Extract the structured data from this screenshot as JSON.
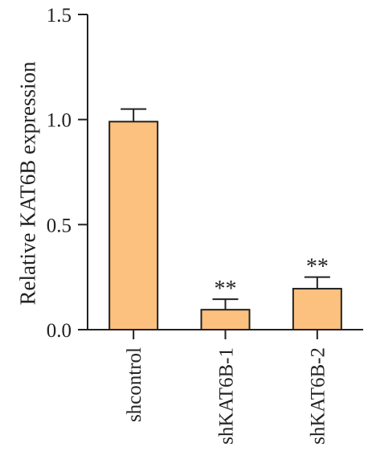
{
  "chart_data": {
    "type": "bar",
    "categories": [
      "shcontrol",
      "shKAT6B-1",
      "shKAT6B-2"
    ],
    "values": [
      0.99,
      0.095,
      0.195
    ],
    "errors": [
      0.06,
      0.05,
      0.055
    ],
    "significance": [
      "",
      "**",
      "**"
    ],
    "title": "",
    "xlabel": "",
    "ylabel": "Relative KAT6B expression",
    "ylim": [
      0,
      1.5
    ],
    "yticks": [
      "0.0",
      "0.5",
      "1.0",
      "1.5"
    ],
    "bar_color": "#fcc07f",
    "bar_edge_color": "#222222",
    "grid": false,
    "legend": "none"
  }
}
